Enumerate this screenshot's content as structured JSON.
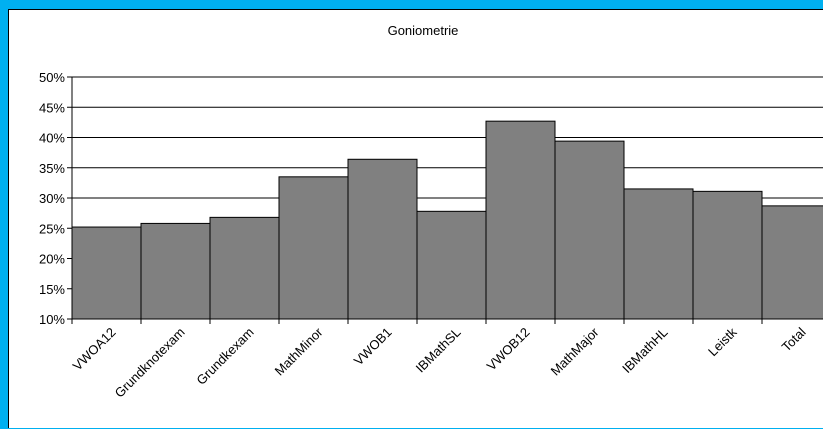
{
  "chart_data": {
    "type": "bar",
    "title": "Goniometrie",
    "xlabel": "",
    "ylabel": "",
    "categories": [
      "VWOA12",
      "Grundknotexam",
      "Grundkexam",
      "MathMinor",
      "VWOB1",
      "IBMathSL",
      "VWOB12",
      "MathMajor",
      "IBMathHL",
      "Leistk",
      "Total"
    ],
    "values": [
      25.2,
      25.8,
      26.8,
      33.5,
      36.4,
      27.8,
      42.7,
      39.4,
      31.5,
      31.1,
      28.7
    ],
    "ylim": [
      10,
      50
    ],
    "yticks": [
      "10%",
      "15%",
      "20%",
      "25%",
      "30%",
      "35%",
      "40%",
      "45%",
      "50%"
    ],
    "grid": true,
    "bar_color": "#808080",
    "background_color": "#00b0f0"
  }
}
